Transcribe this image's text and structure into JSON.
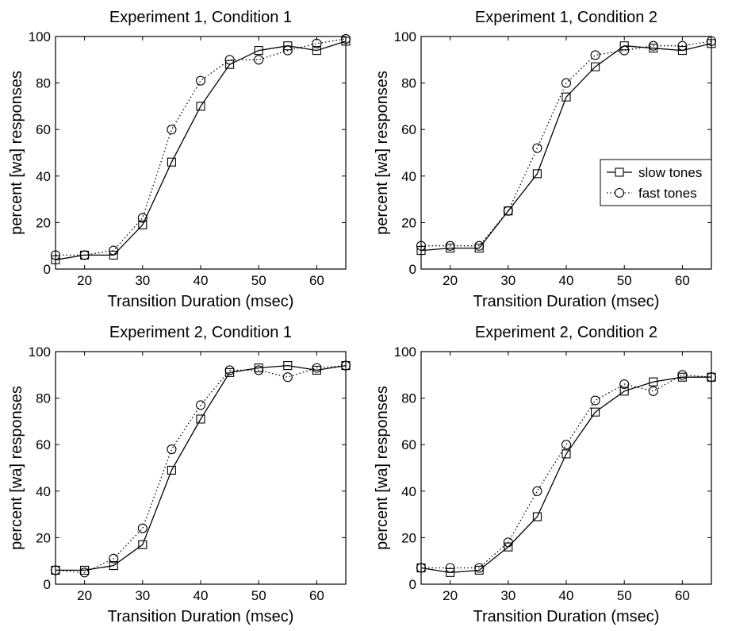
{
  "chart_data": [
    {
      "type": "line",
      "title": "Experiment 1, Condition 1",
      "xlabel": "Transition Duration (msec)",
      "ylabel": "percent [wa] responses",
      "xlim": [
        15,
        65
      ],
      "ylim": [
        0,
        100
      ],
      "xticks": [
        20,
        30,
        40,
        50,
        60
      ],
      "yticks": [
        0,
        20,
        40,
        60,
        80,
        100
      ],
      "grid": false,
      "x": [
        15,
        20,
        25,
        30,
        35,
        40,
        45,
        50,
        55,
        60,
        65
      ],
      "series": [
        {
          "name": "slow tones",
          "marker": "square",
          "line": "solid",
          "values": [
            4,
            6,
            6,
            19,
            46,
            70,
            88,
            94,
            96,
            94,
            98
          ]
        },
        {
          "name": "fast tones",
          "marker": "circle",
          "line": "dotted",
          "values": [
            6,
            6,
            8,
            22,
            60,
            81,
            90,
            90,
            94,
            97,
            99
          ]
        }
      ],
      "legend": null
    },
    {
      "type": "line",
      "title": "Experiment 1, Condition 2",
      "xlabel": "Transition Duration (msec)",
      "ylabel": "percent [wa] responses",
      "xlim": [
        15,
        65
      ],
      "ylim": [
        0,
        100
      ],
      "xticks": [
        20,
        30,
        40,
        50,
        60
      ],
      "yticks": [
        0,
        20,
        40,
        60,
        80,
        100
      ],
      "grid": false,
      "x": [
        15,
        20,
        25,
        30,
        35,
        40,
        45,
        50,
        55,
        60,
        65
      ],
      "series": [
        {
          "name": "slow tones",
          "marker": "square",
          "line": "solid",
          "values": [
            8,
            9,
            9,
            25,
            41,
            74,
            87,
            96,
            95,
            94,
            97
          ]
        },
        {
          "name": "fast tones",
          "marker": "circle",
          "line": "dotted",
          "values": [
            10,
            10,
            10,
            25,
            52,
            80,
            92,
            94,
            96,
            96,
            98
          ]
        }
      ],
      "legend": {
        "position": "center-right",
        "entries": [
          "slow tones",
          "fast tones"
        ]
      }
    },
    {
      "type": "line",
      "title": "Experiment 2, Condition 1",
      "xlabel": "Transition Duration (msec)",
      "ylabel": "percent [wa] responses",
      "xlim": [
        15,
        65
      ],
      "ylim": [
        0,
        100
      ],
      "xticks": [
        20,
        30,
        40,
        50,
        60
      ],
      "yticks": [
        0,
        20,
        40,
        60,
        80,
        100
      ],
      "grid": false,
      "x": [
        15,
        20,
        25,
        30,
        35,
        40,
        45,
        50,
        55,
        60,
        65
      ],
      "series": [
        {
          "name": "slow tones",
          "marker": "square",
          "line": "solid",
          "values": [
            6,
            6,
            8,
            17,
            49,
            71,
            91,
            93,
            94,
            92,
            94
          ]
        },
        {
          "name": "fast tones",
          "marker": "circle",
          "line": "dotted",
          "values": [
            6,
            5,
            11,
            24,
            58,
            77,
            92,
            92,
            89,
            93,
            94
          ]
        }
      ],
      "legend": null
    },
    {
      "type": "line",
      "title": "Experiment 2, Condition 2",
      "xlabel": "Transition Duration (msec)",
      "ylabel": "percent [wa] responses",
      "xlim": [
        15,
        65
      ],
      "ylim": [
        0,
        100
      ],
      "xticks": [
        20,
        30,
        40,
        50,
        60
      ],
      "yticks": [
        0,
        20,
        40,
        60,
        80,
        100
      ],
      "grid": false,
      "x": [
        15,
        20,
        25,
        30,
        35,
        40,
        45,
        50,
        55,
        60,
        65
      ],
      "series": [
        {
          "name": "slow tones",
          "marker": "square",
          "line": "solid",
          "values": [
            7,
            5,
            6,
            16,
            29,
            56,
            74,
            83,
            87,
            89,
            89
          ]
        },
        {
          "name": "fast tones",
          "marker": "circle",
          "line": "dotted",
          "values": [
            7,
            7,
            7,
            18,
            40,
            60,
            79,
            86,
            83,
            90,
            89
          ]
        }
      ],
      "legend": null
    }
  ]
}
